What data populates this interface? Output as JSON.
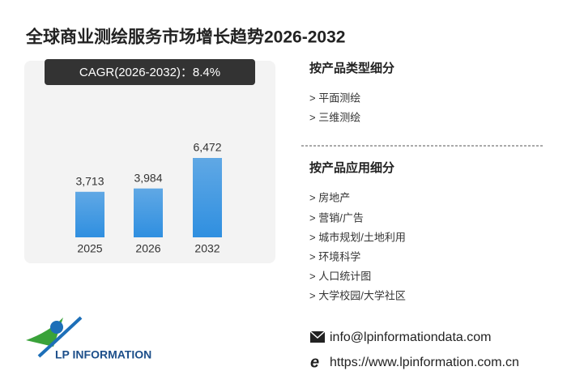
{
  "chart_data": {
    "type": "bar",
    "title": "全球商业测绘服务市场增长趋势2026-2032",
    "subtitle": "CAGR(2026-2032)：8.4%",
    "categories": [
      "2025",
      "2026",
      "2032"
    ],
    "values": [
      3713,
      3984,
      6472
    ],
    "value_labels": [
      "3,713",
      "3,984",
      "6,472"
    ],
    "color": "#2f8fe0"
  },
  "segments": [
    {
      "title": "按产品类型细分",
      "items": [
        "> 平面测绘",
        "> 三维测绘"
      ]
    },
    {
      "title": "按产品应用细分",
      "items": [
        "> 房地产",
        "> 营销/广告",
        "> 城市规划/土地利用",
        "> 环境科学",
        "> 人口统计图",
        "> 大学校园/大学社区"
      ]
    }
  ],
  "contact": {
    "email": "info@lpinformationdata.com",
    "website": "https://www.lpinformation.com.cn"
  },
  "logo": {
    "name": "LP INFORMATION"
  }
}
